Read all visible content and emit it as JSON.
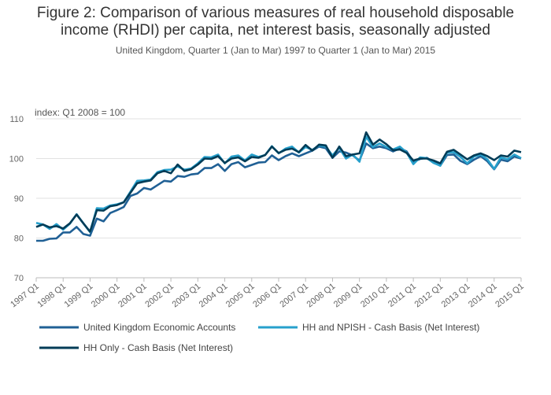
{
  "chart_data": {
    "type": "line",
    "title_line1": "Figure 2: Comparison of various measures of real household disposable",
    "title_line2": "income (RHDI) per capita, net interest basis, seasonally adjusted",
    "subtitle": "United Kingdom, Quarter 1 (Jan to Mar) 1997 to Quarter 1 (Jan to Mar) 2015",
    "ylabel": "index: Q1 2008 = 100",
    "ylim": [
      70,
      110
    ],
    "yticks": [
      70,
      80,
      90,
      100,
      110
    ],
    "xtick_labels": [
      "1997 Q1",
      "1998 Q1",
      "1999 Q1",
      "2000 Q1",
      "2001 Q1",
      "2002 Q1",
      "2003 Q1",
      "2004 Q1",
      "2005 Q1",
      "2006 Q1",
      "2007 Q1",
      "2008 Q1",
      "2009 Q1",
      "2010 Q1",
      "2011 Q1",
      "2012 Q1",
      "2013 Q1",
      "2014 Q1",
      "2015 Q1"
    ],
    "grid": true,
    "legend_position": "bottom",
    "series": [
      {
        "name": "United Kingdom Economic Accounts",
        "color": "#206095",
        "values": [
          79.3,
          79.3,
          79.8,
          79.9,
          81.4,
          81.4,
          82.8,
          81.0,
          80.6,
          84.9,
          84.2,
          86.3,
          87.0,
          87.8,
          90.6,
          91.2,
          92.6,
          92.2,
          93.3,
          94.4,
          94.2,
          95.6,
          95.4,
          96.0,
          96.2,
          97.6,
          97.6,
          98.6,
          96.9,
          98.6,
          99.1,
          97.8,
          98.4,
          99.0,
          99.1,
          100.8,
          99.6,
          100.6,
          101.3,
          100.6,
          101.3,
          102.0,
          103.0,
          102.6,
          100.2,
          101.8,
          101.5,
          100.8,
          99.5,
          103.8,
          102.6,
          103.0,
          102.6,
          101.8,
          102.6,
          101.8,
          99.2,
          99.9,
          100.2,
          99.1,
          98.2,
          100.9,
          101.0,
          99.4,
          98.6,
          99.7,
          100.6,
          99.3,
          97.3,
          99.7,
          99.3,
          100.5,
          100.0
        ]
      },
      {
        "name": "HH and NPISH - Cash Basis (Net Interest)",
        "color": "#27a0cc",
        "values": [
          83.8,
          83.4,
          82.3,
          83.5,
          82.1,
          83.6,
          86.0,
          83.7,
          81.5,
          87.5,
          87.4,
          88.2,
          88.5,
          89.0,
          91.7,
          94.4,
          94.5,
          94.7,
          96.6,
          97.1,
          97.2,
          98.0,
          97.2,
          97.5,
          98.8,
          100.4,
          100.3,
          101.0,
          98.8,
          100.5,
          100.8,
          99.5,
          101.0,
          100.4,
          100.9,
          103.1,
          101.3,
          102.5,
          103.0,
          101.5,
          102.9,
          102.2,
          103.3,
          103.0,
          100.8,
          102.7,
          100.0,
          101.0,
          99.2,
          105.5,
          102.9,
          103.8,
          102.9,
          102.3,
          103.0,
          101.5,
          98.6,
          100.3,
          100.1,
          98.9,
          98.2,
          101.5,
          101.6,
          100.4,
          98.8,
          100.5,
          101.0,
          99.8,
          97.4,
          100.3,
          99.8,
          101.0,
          100.1
        ]
      },
      {
        "name": "HH Only - Cash Basis (Net Interest)",
        "color": "#003c57",
        "values": [
          82.8,
          83.4,
          82.7,
          83.0,
          82.4,
          83.7,
          85.9,
          83.7,
          81.6,
          87.0,
          86.9,
          88.0,
          88.3,
          89.0,
          91.4,
          93.8,
          94.2,
          94.5,
          96.3,
          96.9,
          96.3,
          98.5,
          96.9,
          97.3,
          98.5,
          100.0,
          99.9,
          100.6,
          98.9,
          100.0,
          100.3,
          99.3,
          100.4,
          100.2,
          100.9,
          103.0,
          101.4,
          102.2,
          102.5,
          101.6,
          103.4,
          102.0,
          103.5,
          103.3,
          100.2,
          103.0,
          100.6,
          101.0,
          101.3,
          106.6,
          103.5,
          104.8,
          103.6,
          102.1,
          102.3,
          101.4,
          99.5,
          100.0,
          100.0,
          99.5,
          98.8,
          101.7,
          102.2,
          101.0,
          99.8,
          100.8,
          101.3,
          100.6,
          99.6,
          100.8,
          100.5,
          102.0,
          101.6
        ]
      }
    ]
  }
}
